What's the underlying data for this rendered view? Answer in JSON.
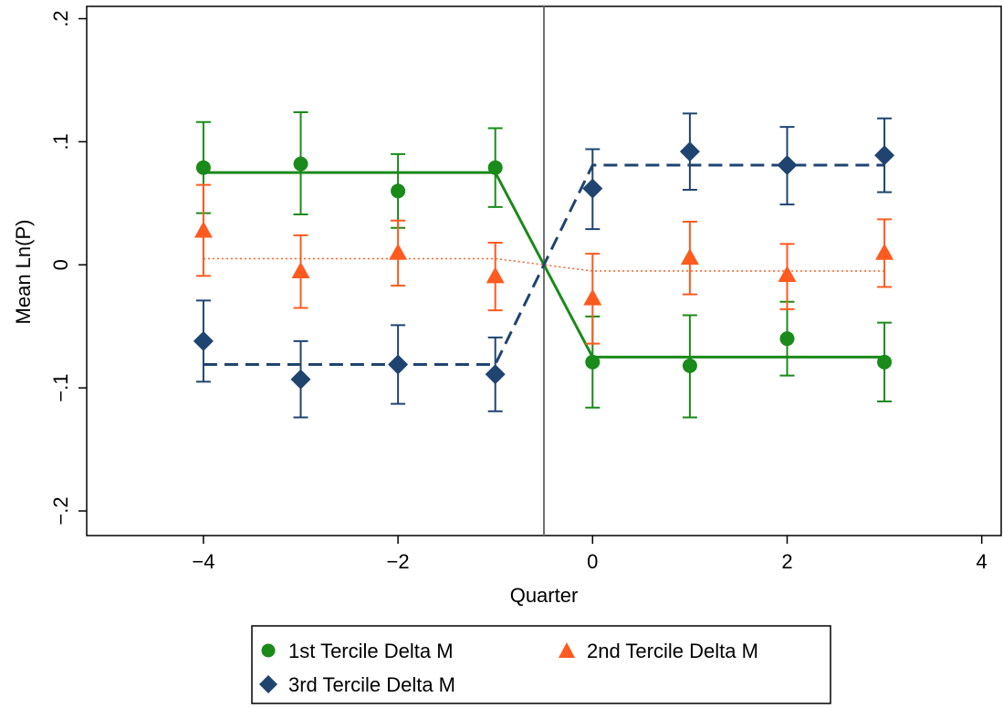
{
  "chart_data": {
    "type": "scatter",
    "title": "",
    "xlabel": "Quarter",
    "ylabel": "Mean Ln(P)",
    "xlim": [
      -5.2,
      4.2
    ],
    "ylim": [
      -0.22,
      0.21
    ],
    "x_ticks": [
      -4,
      -2,
      0,
      2,
      4
    ],
    "x_tick_labels": [
      "−4",
      "−2",
      "0",
      "2",
      "4"
    ],
    "y_ticks": [
      -0.2,
      -0.1,
      0,
      0.1,
      0.2
    ],
    "y_tick_labels": [
      "−.2",
      "−.1",
      "0",
      ".1",
      ".2"
    ],
    "grid": false,
    "legend_position": "bottom",
    "vertical_reference_line_x": -0.5,
    "series": [
      {
        "name": "1st Tercile Delta M",
        "color": "#1a8a1a",
        "marker": "circle",
        "x": [
          -4,
          -3,
          -2,
          -1,
          0,
          1,
          2,
          3
        ],
        "y": [
          0.079,
          0.082,
          0.06,
          0.079,
          -0.079,
          -0.082,
          -0.06,
          -0.079
        ],
        "ci_low": [
          0.042,
          0.041,
          0.03,
          0.047,
          -0.116,
          -0.124,
          -0.09,
          -0.111
        ],
        "ci_high": [
          0.116,
          0.124,
          0.09,
          0.111,
          -0.042,
          -0.041,
          -0.03,
          -0.047
        ],
        "fit_line": {
          "style": "solid",
          "x": [
            -4,
            -1,
            0,
            3
          ],
          "y": [
            0.075,
            0.075,
            -0.075,
            -0.075
          ]
        }
      },
      {
        "name": "2nd Tercile Delta M",
        "color": "#ff5a1f",
        "marker": "triangle",
        "x": [
          -4,
          -3,
          -2,
          -1,
          0,
          1,
          2,
          3
        ],
        "y": [
          0.028,
          -0.005,
          0.01,
          -0.009,
          -0.027,
          0.006,
          -0.008,
          0.01
        ],
        "ci_low": [
          -0.009,
          -0.035,
          -0.017,
          -0.037,
          -0.064,
          -0.024,
          -0.036,
          -0.018
        ],
        "ci_high": [
          0.065,
          0.024,
          0.036,
          0.018,
          0.009,
          0.035,
          0.017,
          0.037
        ],
        "fit_line": {
          "style": "dotted",
          "x": [
            -4,
            -1,
            0,
            3
          ],
          "y": [
            0.005,
            0.005,
            -0.005,
            -0.005
          ]
        }
      },
      {
        "name": "3rd Tercile Delta M",
        "color": "#1f4470",
        "marker": "diamond",
        "x": [
          -4,
          -3,
          -2,
          -1,
          0,
          1,
          2,
          3
        ],
        "y": [
          -0.062,
          -0.093,
          -0.081,
          -0.089,
          0.062,
          0.092,
          0.081,
          0.089
        ],
        "ci_low": [
          -0.095,
          -0.124,
          -0.113,
          -0.119,
          0.029,
          0.061,
          0.049,
          0.059
        ],
        "ci_high": [
          -0.029,
          -0.062,
          -0.049,
          -0.059,
          0.094,
          0.123,
          0.112,
          0.119
        ],
        "fit_line": {
          "style": "dashed",
          "x": [
            -4,
            -1,
            0,
            3
          ],
          "y": [
            -0.081,
            -0.081,
            0.081,
            0.081
          ]
        }
      }
    ]
  }
}
